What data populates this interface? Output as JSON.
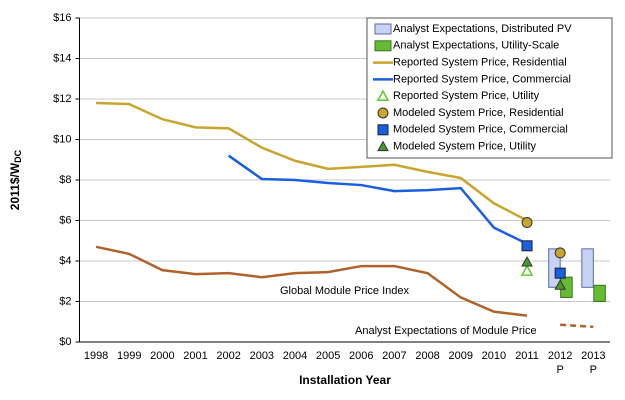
{
  "chart_data": {
    "type": "line",
    "ylabel": "2011$/W",
    "ylabel_sub": "DC",
    "xlabel": "Installation Year",
    "categories": [
      "1998",
      "1999",
      "2000",
      "2001",
      "2002",
      "2003",
      "2004",
      "2005",
      "2006",
      "2007",
      "2008",
      "2009",
      "2010",
      "2011",
      "2012",
      "2013"
    ],
    "category_notes": [
      null,
      null,
      null,
      null,
      null,
      null,
      null,
      null,
      null,
      null,
      null,
      null,
      null,
      null,
      "P",
      "P"
    ],
    "ylim": [
      0,
      16
    ],
    "yticks": [
      {
        "value": 0,
        "label": "$0"
      },
      {
        "value": 2,
        "label": "$2"
      },
      {
        "value": 4,
        "label": "$4"
      },
      {
        "value": 6,
        "label": "$6"
      },
      {
        "value": 8,
        "label": "$8"
      },
      {
        "value": 10,
        "label": "$10"
      },
      {
        "value": 12,
        "label": "$12"
      },
      {
        "value": 14,
        "label": "$14"
      },
      {
        "value": 16,
        "label": "$16"
      }
    ],
    "grid": true,
    "legend": "upper right",
    "series": [
      {
        "name": "Analyst Expectations, Distributed PV",
        "style": "box",
        "color": "#c8d2f2",
        "stroke": "#5a6aa8",
        "low": [
          null,
          null,
          null,
          null,
          null,
          null,
          null,
          null,
          null,
          null,
          null,
          null,
          null,
          null,
          2.7,
          2.7
        ],
        "high": [
          null,
          null,
          null,
          null,
          null,
          null,
          null,
          null,
          null,
          null,
          null,
          null,
          null,
          null,
          4.6,
          4.6
        ]
      },
      {
        "name": "Analyst Expectations, Utility-Scale",
        "style": "box",
        "color": "#66bb33",
        "stroke": "#2f7a1e",
        "low": [
          null,
          null,
          null,
          null,
          null,
          null,
          null,
          null,
          null,
          null,
          null,
          null,
          null,
          null,
          2.2,
          2.0
        ],
        "high": [
          null,
          null,
          null,
          null,
          null,
          null,
          null,
          null,
          null,
          null,
          null,
          null,
          null,
          null,
          3.2,
          2.8
        ]
      },
      {
        "name": "Reported System Price, Residential",
        "style": "line",
        "color": "#c9a52f",
        "values": [
          11.8,
          11.75,
          11.0,
          10.6,
          10.55,
          9.6,
          8.95,
          8.55,
          8.65,
          8.75,
          8.4,
          8.1,
          6.85,
          6.0,
          null,
          null
        ]
      },
      {
        "name": "Reported System Price, Commercial",
        "style": "line",
        "color": "#1a5fe0",
        "values": [
          null,
          null,
          null,
          null,
          9.2,
          8.05,
          8.0,
          7.85,
          7.75,
          7.45,
          7.5,
          7.6,
          5.65,
          4.85,
          null,
          null
        ]
      },
      {
        "name": "Reported System Price, Utility",
        "style": "marker",
        "marker": "triangle-open",
        "color": "#66cc33",
        "values": [
          null,
          null,
          null,
          null,
          null,
          null,
          null,
          null,
          null,
          null,
          null,
          null,
          null,
          3.5,
          null,
          null
        ]
      },
      {
        "name": "Modeled System Price, Residential",
        "style": "marker",
        "marker": "circle",
        "color": "#c9a52f",
        "values": [
          null,
          null,
          null,
          null,
          null,
          null,
          null,
          null,
          null,
          null,
          null,
          null,
          null,
          5.9,
          4.4,
          null
        ]
      },
      {
        "name": "Modeled System Price, Commercial",
        "style": "marker",
        "marker": "square",
        "color": "#1a5fe0",
        "values": [
          null,
          null,
          null,
          null,
          null,
          null,
          null,
          null,
          null,
          null,
          null,
          null,
          null,
          4.75,
          3.4,
          null
        ]
      },
      {
        "name": "Modeled System Price, Utility",
        "style": "marker",
        "marker": "triangle",
        "color": "#4a9a2a",
        "values": [
          null,
          null,
          null,
          null,
          null,
          null,
          null,
          null,
          null,
          null,
          null,
          null,
          null,
          3.95,
          2.8,
          null
        ]
      }
    ],
    "annotated_lines": [
      {
        "label": "Global Module Price Index",
        "color": "#b0622a",
        "dashed": false,
        "values": [
          4.7,
          4.35,
          3.55,
          3.35,
          3.4,
          3.2,
          3.4,
          3.45,
          3.75,
          3.75,
          3.4,
          2.2,
          1.5,
          1.3,
          null,
          null
        ]
      },
      {
        "label": "Analyst Expectations of Module Price",
        "color": "#b0622a",
        "dashed": true,
        "values": [
          null,
          null,
          null,
          null,
          null,
          null,
          null,
          null,
          null,
          null,
          null,
          null,
          null,
          null,
          0.85,
          0.75
        ]
      }
    ]
  }
}
